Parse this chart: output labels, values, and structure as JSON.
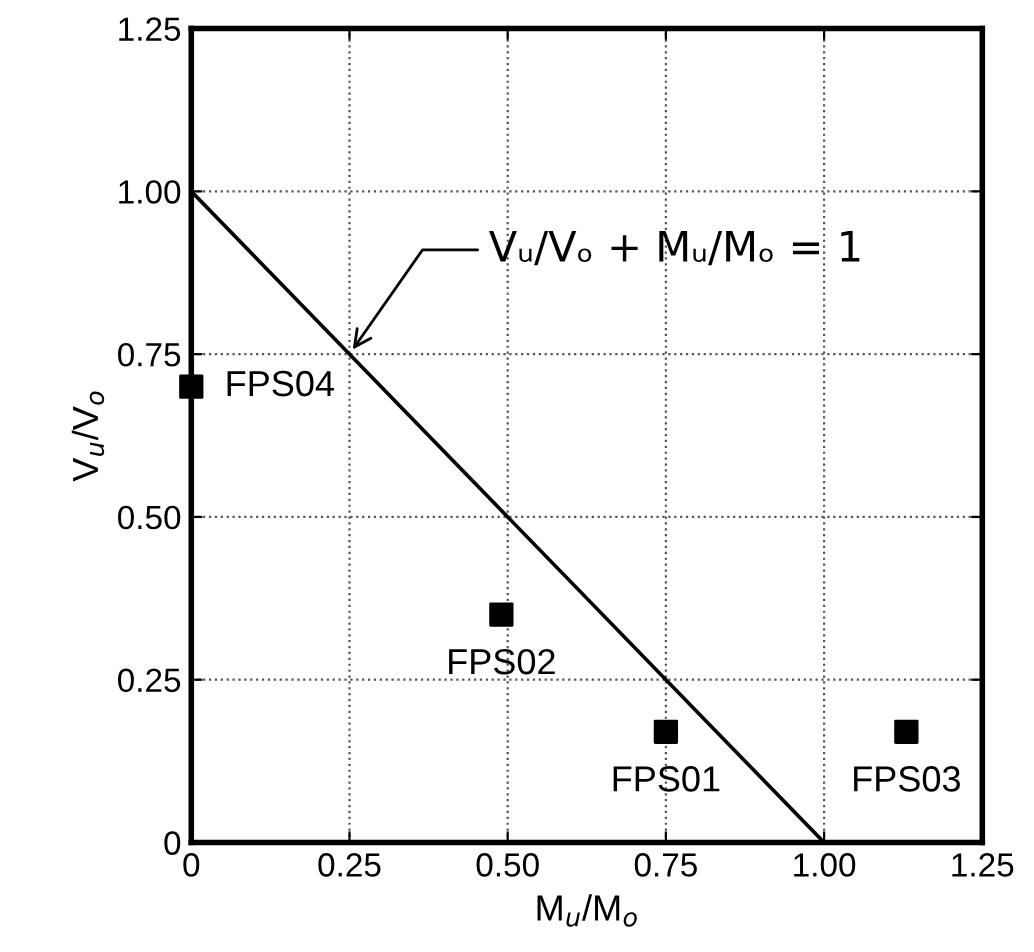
{
  "chart_data": {
    "type": "scatter",
    "xlabel": "M$_{u}$/M$_{o}$",
    "ylabel": "V$_{u}$/V$_{o}$",
    "xlim": [
      0,
      1.25
    ],
    "ylim": [
      0,
      1.25
    ],
    "xticks": [
      0,
      0.25,
      {
        "value": 0.5,
        "label": "0.50"
      },
      0.75,
      {
        "value": 1.0,
        "label": "1.00"
      },
      1.25
    ],
    "yticks": [
      0,
      0.25,
      {
        "value": 0.5,
        "label": "0.50"
      },
      0.75,
      {
        "value": 1.0,
        "label": "1.00"
      },
      1.25
    ],
    "grid": true,
    "marker": "square",
    "series": [
      {
        "color": "#000000",
        "x": [
          0.0,
          0.49,
          0.75,
          1.13
        ],
        "values": [
          0.7,
          0.35,
          0.17,
          0.17
        ]
      },
      {
        "type": "line",
        "color": "#000000",
        "x": [
          0,
          1
        ],
        "values": [
          1,
          0
        ],
        "marker": "none",
        "line_style": "solid"
      }
    ],
    "annotations": [
      {
        "text": "Vᵤ/Vₒ + Mᵤ/Mₒ = 1",
        "x": 0.25,
        "y": 0.75
      },
      {
        "text": "FPS04",
        "x": 0.0,
        "y": 0.7
      },
      {
        "text": "FPS02",
        "x": 0.49,
        "y": 0.35
      },
      {
        "text": "FPS01",
        "x": 0.75,
        "y": 0.17
      },
      {
        "text": "FPS03",
        "x": 1.13,
        "y": 0.17
      }
    ]
  }
}
